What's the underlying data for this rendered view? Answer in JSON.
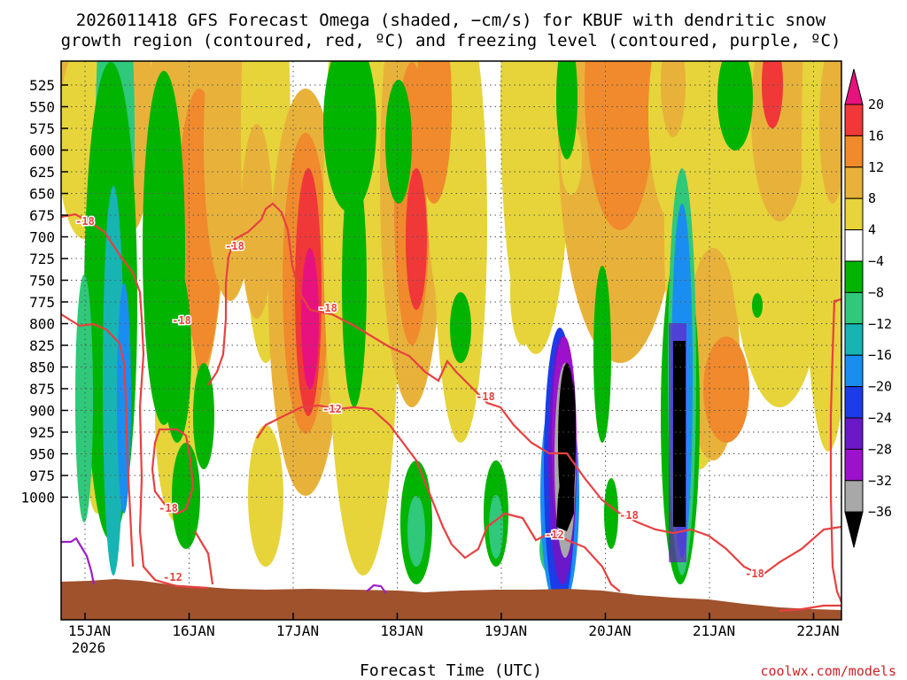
{
  "chart_data": {
    "type": "heatmap",
    "title_lines": [
      "2026011418 GFS Forecast Omega (shaded, −cm/s) for KBUF with dendritic snow",
      "growth region (contoured, red, ºC) and freezing level (contoured, purple, ºC)"
    ],
    "xlabel": "Forecast Time (UTC)",
    "x_ticks": [
      "15JAN",
      "16JAN",
      "17JAN",
      "18JAN",
      "19JAN",
      "20JAN",
      "21JAN",
      "22JAN"
    ],
    "x_year": "2026",
    "y_ticks": [
      "525",
      "550",
      "575",
      "600",
      "625",
      "650",
      "675",
      "700",
      "725",
      "750",
      "775",
      "800",
      "825",
      "850",
      "875",
      "900",
      "925",
      "950",
      "975",
      "1000"
    ],
    "colorbar_levels": [
      "20",
      "16",
      "12",
      "8",
      "4",
      "−4",
      "−8",
      "−12",
      "−16",
      "−20",
      "−24",
      "−28",
      "−32",
      "−36"
    ],
    "colorbar_colors": [
      "#e8127e",
      "#f03838",
      "#f08a2c",
      "#e8b23a",
      "#e6d43a",
      "#ffffff",
      "#00b400",
      "#30c87a",
      "#18b4b4",
      "#1a8ef0",
      "#1c3ce8",
      "#6a18c8",
      "#9c12cc",
      "#a8a8a8",
      "#000000"
    ],
    "contour_labels": [
      "-18",
      "-18",
      "-18",
      "-18",
      "-12",
      "-18",
      "-12",
      "-18",
      "-12",
      "-18",
      "-18"
    ],
    "credit": "coolwx.com/models",
    "colors": {
      "ground": "#a0522d",
      "dgz_contour": "#e84040",
      "freezing_contour": "#9a1fc8"
    }
  }
}
